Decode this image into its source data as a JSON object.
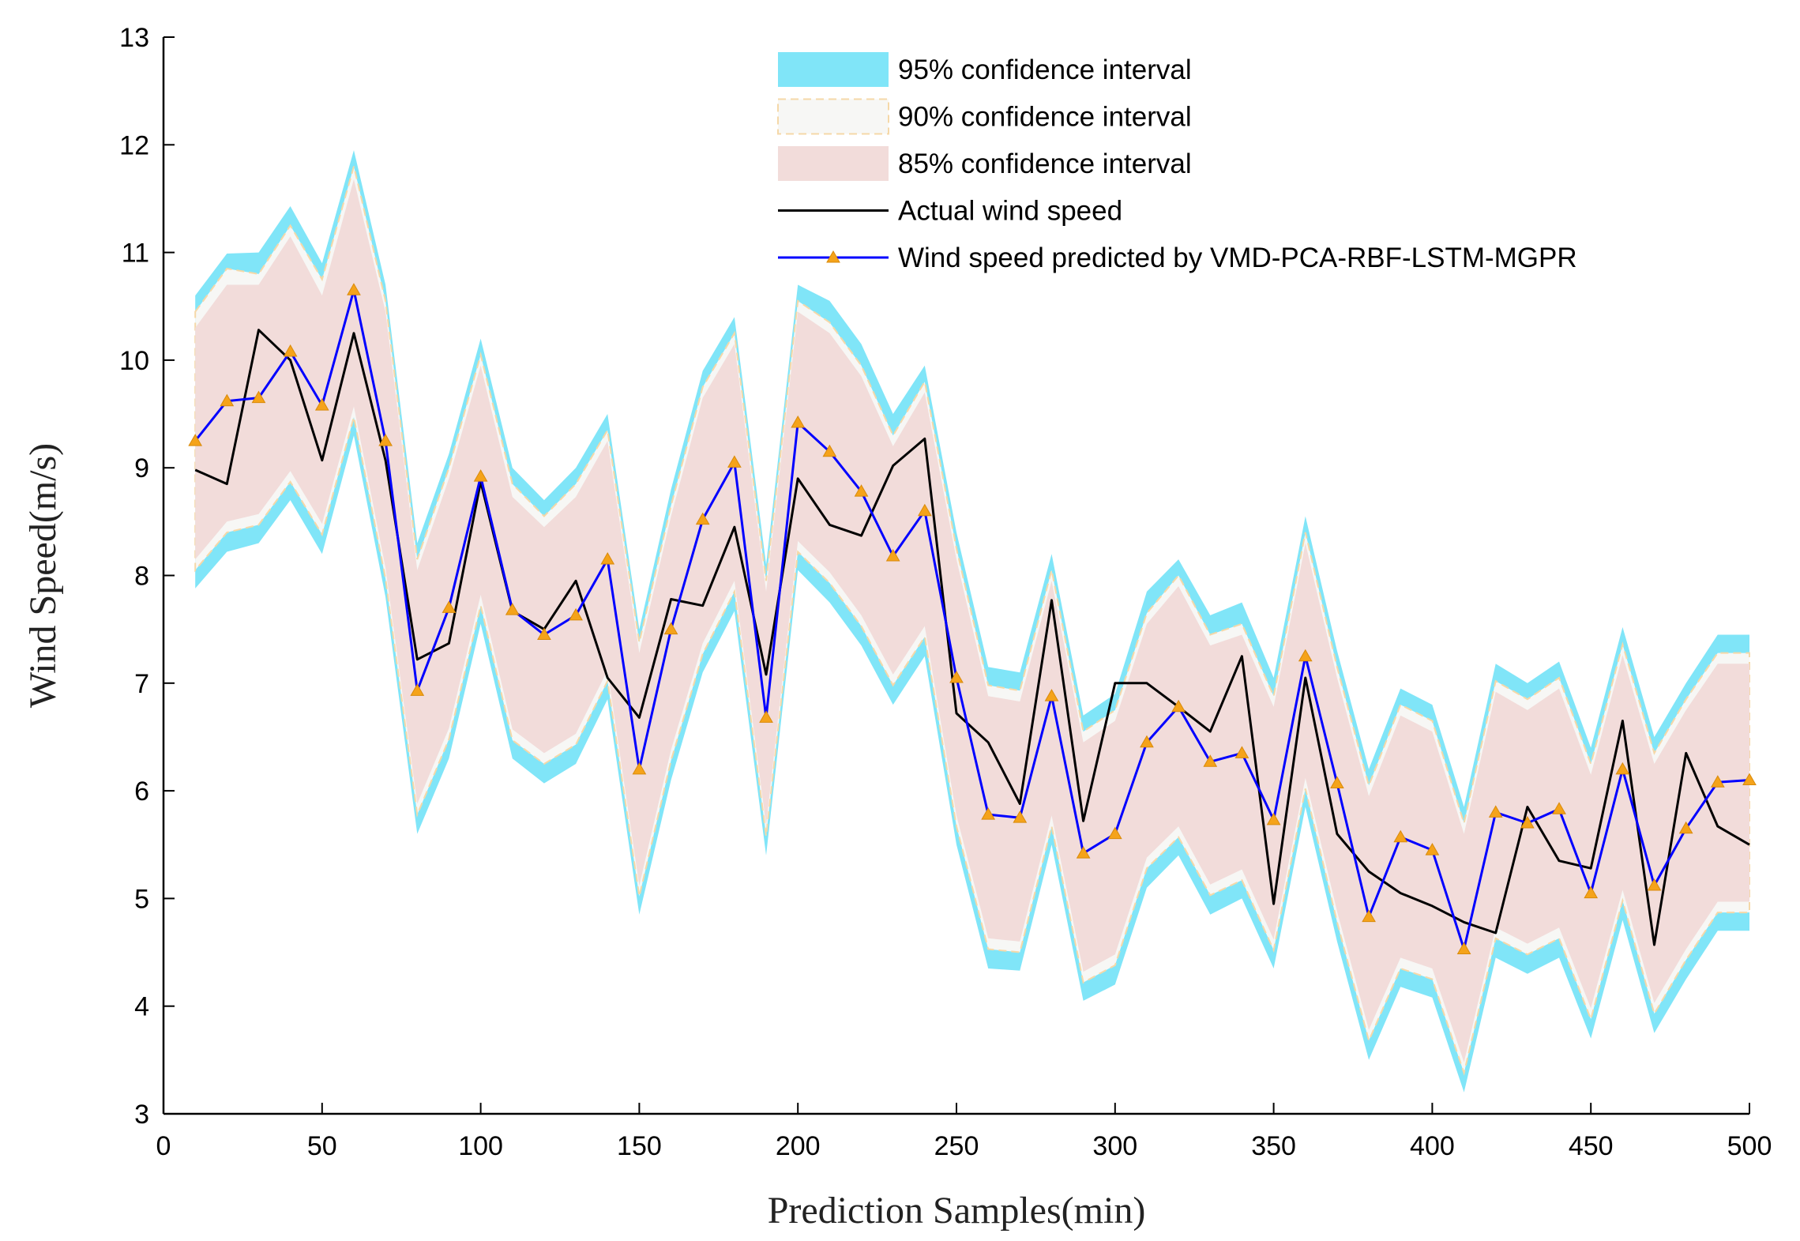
{
  "chart_data": {
    "type": "line",
    "xlabel": "Prediction Samples(min)",
    "ylabel": "Wind Speed(m/s)",
    "xlim": [
      0,
      500
    ],
    "ylim": [
      3,
      13
    ],
    "xticks": [
      0,
      50,
      100,
      150,
      200,
      250,
      300,
      350,
      400,
      450,
      500
    ],
    "yticks": [
      3,
      4,
      5,
      6,
      7,
      8,
      9,
      10,
      11,
      12,
      13
    ],
    "grid": false,
    "legend_position": "top-right",
    "x": [
      10,
      20,
      30,
      40,
      50,
      60,
      70,
      80,
      90,
      100,
      110,
      120,
      130,
      140,
      150,
      160,
      170,
      180,
      190,
      200,
      210,
      220,
      230,
      240,
      250,
      260,
      270,
      280,
      290,
      300,
      310,
      320,
      330,
      340,
      350,
      360,
      370,
      380,
      390,
      400,
      410,
      420,
      430,
      440,
      450,
      460,
      470,
      480,
      490,
      500
    ],
    "bands": [
      {
        "name": "95% confidence interval",
        "color": "#80e5f8",
        "upper": [
          10.6,
          10.99,
          11.0,
          11.43,
          10.9,
          11.95,
          10.7,
          8.3,
          9.13,
          10.2,
          9.0,
          8.7,
          9.0,
          9.5,
          7.5,
          8.8,
          9.9,
          10.4,
          8.1,
          10.7,
          10.55,
          10.15,
          9.5,
          9.95,
          8.4,
          7.15,
          7.1,
          8.2,
          6.7,
          6.9,
          7.85,
          8.15,
          7.63,
          7.75,
          7.05,
          8.55,
          7.3,
          6.2,
          6.95,
          6.8,
          5.85,
          7.18,
          7.0,
          7.2,
          6.4,
          7.52,
          6.5,
          7.0,
          7.45,
          7.45
        ],
        "lower": [
          7.88,
          8.22,
          8.3,
          8.7,
          8.2,
          9.3,
          7.8,
          5.6,
          6.3,
          7.55,
          6.3,
          6.07,
          6.25,
          6.85,
          4.85,
          6.1,
          7.1,
          7.67,
          5.4,
          8.05,
          7.75,
          7.35,
          6.8,
          7.25,
          5.5,
          4.35,
          4.33,
          5.5,
          4.05,
          4.2,
          5.1,
          5.4,
          4.85,
          5.0,
          4.35,
          5.85,
          4.6,
          3.5,
          4.18,
          4.08,
          3.2,
          4.45,
          4.3,
          4.45,
          3.7,
          4.8,
          3.75,
          4.25,
          4.7,
          4.7
        ]
      },
      {
        "name": "90% confidence interval",
        "color": "#f7f7f5",
        "edge_color": "#f5d8a8",
        "upper": [
          10.45,
          10.85,
          10.8,
          11.25,
          10.75,
          11.8,
          10.55,
          8.15,
          9.0,
          10.05,
          8.85,
          8.55,
          8.85,
          9.35,
          7.38,
          8.65,
          9.75,
          10.25,
          7.95,
          10.55,
          10.35,
          9.95,
          9.3,
          9.8,
          8.25,
          6.98,
          6.93,
          8.05,
          6.55,
          6.75,
          7.65,
          8.0,
          7.45,
          7.55,
          6.88,
          8.4,
          7.15,
          6.05,
          6.8,
          6.65,
          5.7,
          7.02,
          6.85,
          7.05,
          6.25,
          7.36,
          6.35,
          6.85,
          7.28,
          7.28
        ],
        "lower": [
          8.05,
          8.4,
          8.47,
          8.87,
          8.38,
          9.47,
          7.97,
          5.78,
          6.48,
          7.72,
          6.47,
          6.25,
          6.43,
          7.02,
          5.02,
          6.28,
          7.27,
          7.85,
          5.58,
          8.22,
          7.93,
          7.53,
          6.98,
          7.43,
          5.67,
          4.53,
          4.5,
          5.67,
          4.22,
          4.38,
          5.28,
          5.57,
          5.03,
          5.17,
          4.52,
          6.02,
          4.78,
          3.68,
          4.35,
          4.25,
          3.38,
          4.63,
          4.48,
          4.63,
          3.88,
          4.98,
          3.93,
          4.43,
          4.87,
          4.87
        ]
      },
      {
        "name": "85% confidence interval",
        "color": "#f2dcda",
        "upper": [
          10.3,
          10.7,
          10.7,
          11.15,
          10.6,
          11.68,
          10.45,
          8.05,
          8.9,
          9.95,
          8.73,
          8.45,
          8.73,
          9.25,
          7.28,
          8.55,
          9.65,
          10.15,
          7.85,
          10.45,
          10.25,
          9.85,
          9.2,
          9.7,
          8.15,
          6.88,
          6.83,
          7.95,
          6.45,
          6.65,
          7.55,
          7.9,
          7.35,
          7.45,
          6.78,
          8.3,
          7.05,
          5.95,
          6.7,
          6.55,
          5.6,
          6.92,
          6.75,
          6.95,
          6.15,
          7.26,
          6.25,
          6.75,
          7.18,
          7.18
        ],
        "lower": [
          8.15,
          8.5,
          8.57,
          8.97,
          8.48,
          9.57,
          8.07,
          5.88,
          6.58,
          7.82,
          6.57,
          6.35,
          6.53,
          7.12,
          5.12,
          6.38,
          7.37,
          7.95,
          5.68,
          8.32,
          8.03,
          7.63,
          7.08,
          7.53,
          5.77,
          4.63,
          4.6,
          5.77,
          4.32,
          4.48,
          5.38,
          5.67,
          5.13,
          5.27,
          4.62,
          6.12,
          4.88,
          3.78,
          4.45,
          4.35,
          3.48,
          4.73,
          4.58,
          4.73,
          3.98,
          5.08,
          4.03,
          4.53,
          4.97,
          4.97
        ]
      }
    ],
    "series": [
      {
        "name": "Actual wind speed",
        "color": "#000000",
        "values": [
          8.98,
          8.85,
          10.28,
          10.0,
          9.07,
          10.25,
          9.07,
          7.22,
          7.37,
          8.87,
          7.67,
          7.5,
          7.95,
          7.05,
          6.68,
          7.78,
          7.72,
          8.45,
          7.08,
          8.9,
          8.47,
          8.37,
          9.02,
          9.27,
          6.72,
          6.45,
          5.88,
          7.77,
          5.72,
          7.0,
          7.0,
          6.78,
          6.55,
          7.25,
          4.95,
          7.05,
          5.6,
          5.25,
          5.05,
          4.93,
          4.78,
          4.68,
          5.85,
          5.35,
          5.28,
          6.65,
          4.57,
          6.35,
          5.67,
          5.5
        ]
      },
      {
        "name": "Wind speed predicted by VMD-PCA-RBF-LSTM-MGPR",
        "color": "#0000ff",
        "marker": "triangle",
        "marker_color": "#f5a31a",
        "values": [
          9.25,
          9.62,
          9.65,
          10.08,
          9.58,
          10.65,
          9.25,
          6.93,
          7.7,
          8.92,
          7.68,
          7.45,
          7.63,
          8.15,
          6.2,
          7.5,
          8.52,
          9.05,
          6.68,
          9.42,
          9.15,
          8.78,
          8.18,
          8.6,
          7.05,
          5.78,
          5.75,
          6.88,
          5.42,
          5.6,
          6.45,
          6.78,
          6.27,
          6.35,
          5.73,
          7.25,
          6.07,
          4.83,
          5.57,
          5.45,
          4.53,
          5.8,
          5.7,
          5.83,
          5.05,
          6.2,
          5.12,
          5.65,
          6.08,
          6.1
        ]
      }
    ]
  }
}
